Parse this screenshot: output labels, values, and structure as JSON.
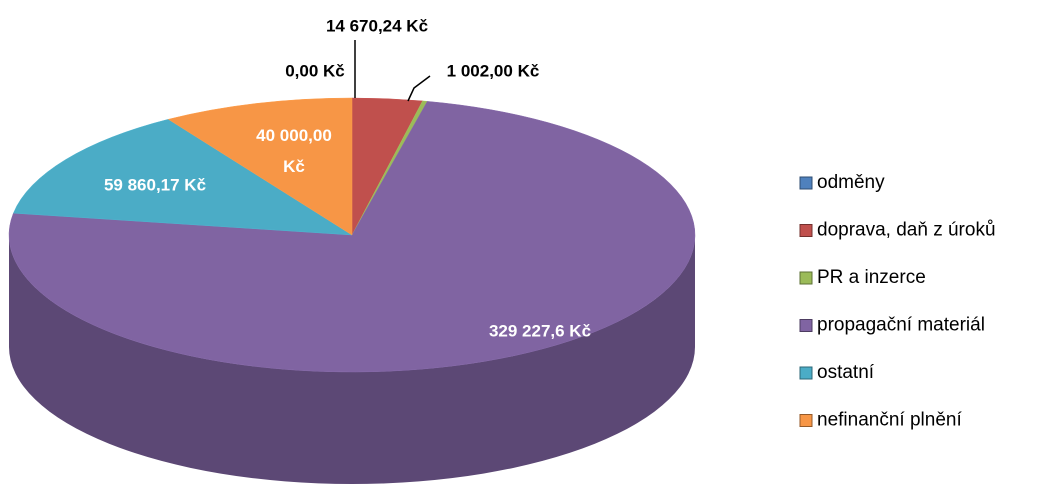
{
  "chart_data": {
    "type": "pie3d",
    "categories": [
      "odměny",
      "doprava, daň z úroků",
      "PR a inzerce",
      "propagační materiál",
      "ostatní",
      "nefinanční plnění"
    ],
    "values": [
      0,
      14670.24,
      1002,
      329227.6,
      59860.17,
      40000
    ],
    "value_labels": [
      "0,00 Kč",
      "14 670,24 Kč",
      "1 002,00 Kč",
      "329 227,6 Kč",
      "59 860,17 Kč",
      "40 000,00 Kč"
    ],
    "colors": [
      "#4f81bd",
      "#c0504d",
      "#9bbb59",
      "#8064a2",
      "#4bacc6",
      "#f79646"
    ],
    "legend": "right"
  }
}
